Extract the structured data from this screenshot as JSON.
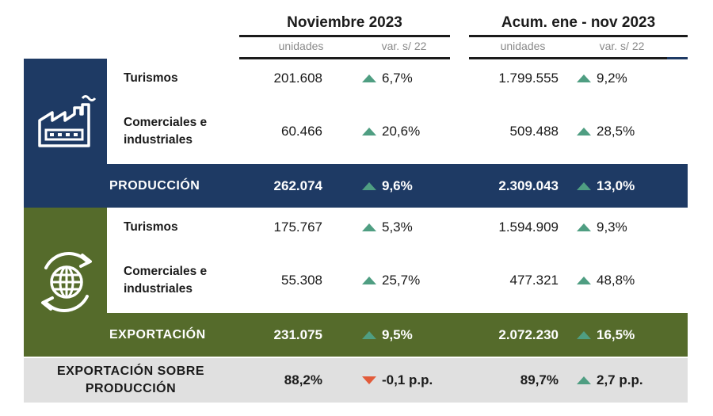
{
  "header": {
    "period1": "Noviembre 2023",
    "period2": "Acum. ene - nov 2023",
    "col_units": "unidades",
    "col_var": "var. s/ 22"
  },
  "colors": {
    "production_blue": "#1e3a64",
    "export_green": "#556b2b",
    "summary_gray": "#e0e0e0",
    "up_arrow": "#4f9e82",
    "down_arrow": "#e25b3a"
  },
  "icons": {
    "production": "factory-icon",
    "export": "globe-exchange-icon"
  },
  "production": {
    "rows": [
      {
        "label": "Turismos",
        "nov_units": "201.608",
        "nov_var": "6,7%",
        "acum_units": "1.799.555",
        "acum_var": "9,2%"
      },
      {
        "label": "Comerciales e industriales",
        "nov_units": "60.466",
        "nov_var": "20,6%",
        "acum_units": "509.488",
        "acum_var": "28,5%"
      }
    ],
    "total": {
      "label": "PRODUCCIÓN",
      "nov_units": "262.074",
      "nov_var": "9,6%",
      "acum_units": "2.309.043",
      "acum_var": "13,0%"
    }
  },
  "export": {
    "rows": [
      {
        "label": "Turismos",
        "nov_units": "175.767",
        "nov_var": "5,3%",
        "acum_units": "1.594.909",
        "acum_var": "9,3%"
      },
      {
        "label": "Comerciales e industriales",
        "nov_units": "55.308",
        "nov_var": "25,7%",
        "acum_units": "477.321",
        "acum_var": "48,8%"
      }
    ],
    "total": {
      "label": "EXPORTACIÓN",
      "nov_units": "231.075",
      "nov_var": "9,5%",
      "acum_units": "2.072.230",
      "acum_var": "16,5%"
    }
  },
  "summary": {
    "label": "EXPORTACIÓN SOBRE PRODUCCIÓN",
    "nov_units": "88,2%",
    "nov_var": "-0,1 p.p.",
    "acum_units": "89,7%",
    "acum_var": "2,7 p.p."
  }
}
